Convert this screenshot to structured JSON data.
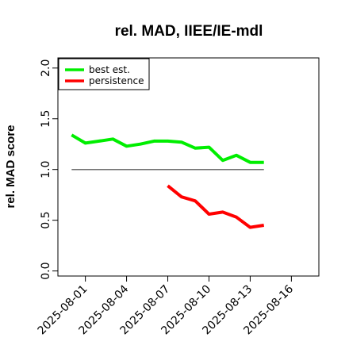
{
  "chart_data": {
    "type": "line",
    "title": "rel. MAD, IIEE/IE-mdl",
    "xlabel": "",
    "ylabel": "rel. MAD score",
    "xlim": [
      "2025-07-30",
      "2025-08-18"
    ],
    "ylim": [
      -0.05,
      2.1
    ],
    "x_ticks": [
      "2025-08-01",
      "2025-08-04",
      "2025-08-07",
      "2025-08-10",
      "2025-08-13",
      "2025-08-16"
    ],
    "y_ticks": [
      "0.0",
      "0.5",
      "1.0",
      "1.5",
      "2.0"
    ],
    "reference_line": {
      "y": 1.0,
      "x_from": "2025-07-31",
      "x_to": "2025-08-14",
      "color": "#707070"
    },
    "legend": {
      "position": "top-left",
      "entries": [
        "best est.",
        "persistence"
      ]
    },
    "series": [
      {
        "name": "best est.",
        "color": "#00ee00",
        "points": [
          [
            "2025-07-31",
            1.34
          ],
          [
            "2025-08-01",
            1.26
          ],
          [
            "2025-08-02",
            1.28
          ],
          [
            "2025-08-03",
            1.3
          ],
          [
            "2025-08-04",
            1.23
          ],
          [
            "2025-08-05",
            1.25
          ],
          [
            "2025-08-06",
            1.28
          ],
          [
            "2025-08-07",
            1.28
          ],
          [
            "2025-08-08",
            1.27
          ],
          [
            "2025-08-09",
            1.21
          ],
          [
            "2025-08-10",
            1.22
          ],
          [
            "2025-08-11",
            1.09
          ],
          [
            "2025-08-12",
            1.14
          ],
          [
            "2025-08-13",
            1.07
          ],
          [
            "2025-08-14",
            1.07
          ]
        ]
      },
      {
        "name": "persistence",
        "color": "#ff0000",
        "points": [
          [
            "2025-08-07",
            0.84
          ],
          [
            "2025-08-08",
            0.73
          ],
          [
            "2025-08-09",
            0.69
          ],
          [
            "2025-08-10",
            0.56
          ],
          [
            "2025-08-11",
            0.58
          ],
          [
            "2025-08-12",
            0.53
          ],
          [
            "2025-08-13",
            0.43
          ],
          [
            "2025-08-14",
            0.45
          ]
        ]
      }
    ]
  }
}
